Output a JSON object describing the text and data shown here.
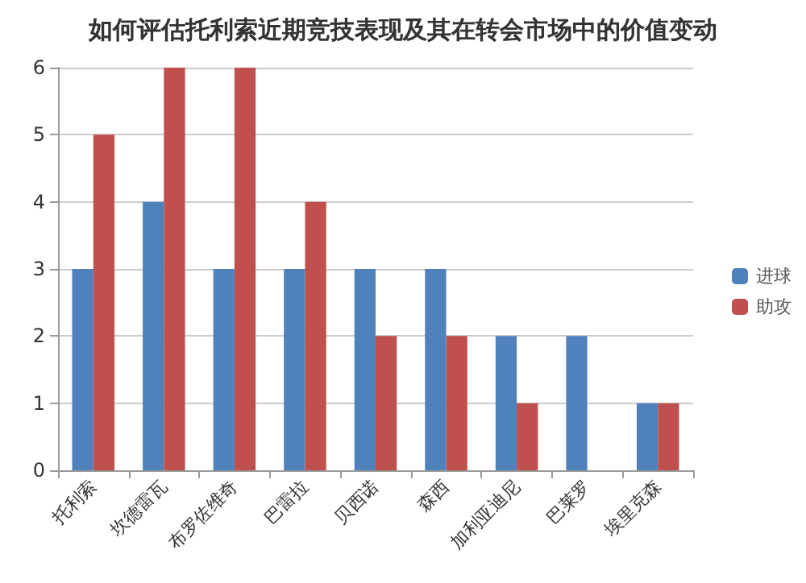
{
  "chart_data": {
    "type": "bar",
    "title": "如何评估托利索近期竞技表现及其在转会市场中的价值变动",
    "categories": [
      "托利索",
      "坎德雷瓦",
      "布罗佐维奇",
      "巴雷拉",
      "贝西诺",
      "森西",
      "加利亚迪尼",
      "巴莱罗",
      "埃里克森"
    ],
    "series": [
      {
        "name": "进球",
        "color": "#4f81bd",
        "values": [
          3,
          4,
          3,
          3,
          3,
          3,
          2,
          2,
          1
        ]
      },
      {
        "name": "助攻",
        "color": "#c0504d",
        "values": [
          5,
          6,
          6,
          4,
          2,
          2,
          1,
          0,
          1
        ]
      }
    ],
    "ylim": [
      0,
      6
    ],
    "yticks": [
      0,
      1,
      2,
      3,
      4,
      5,
      6
    ],
    "grid": "y",
    "legend": "right"
  }
}
